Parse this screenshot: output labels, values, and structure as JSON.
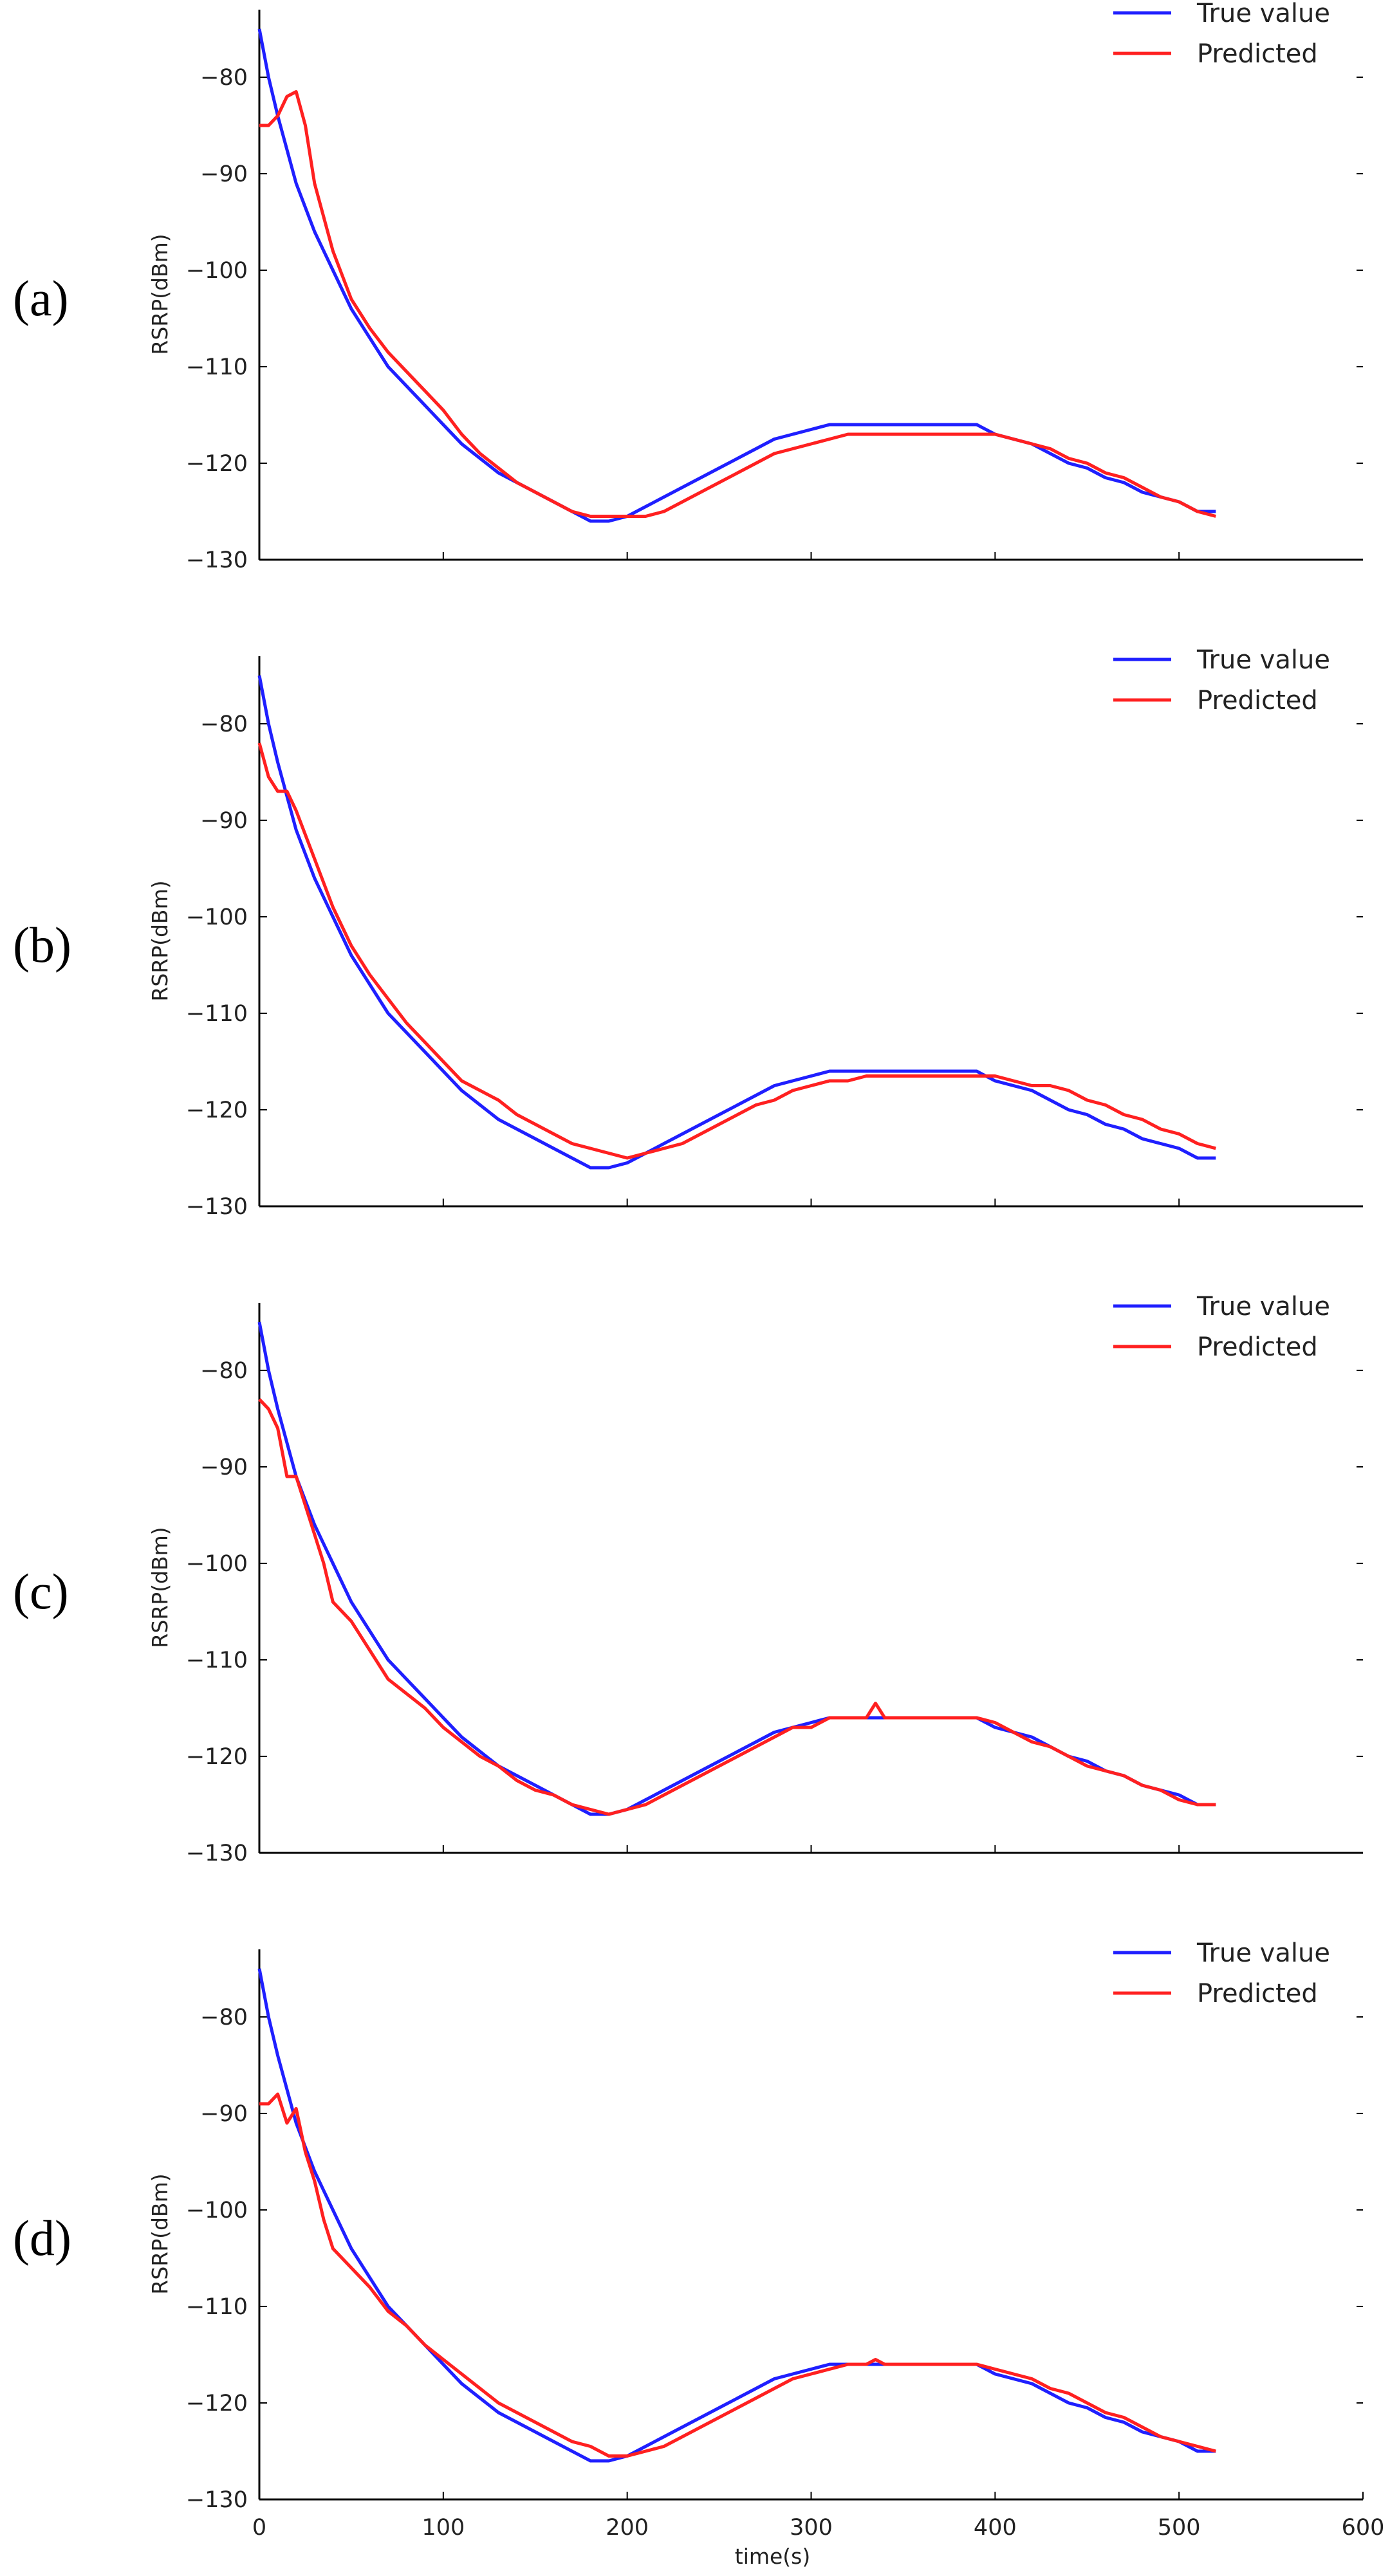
{
  "chart_data": [
    {
      "type": "line",
      "panel_label": "(a)",
      "ylabel": "RSRP(dBm)",
      "xlabel": "",
      "xlim": [
        0,
        600
      ],
      "ylim": [
        -130,
        -75
      ],
      "yticks": [
        -80,
        -90,
        -100,
        -110,
        -120,
        -130
      ],
      "ytick_labels": [
        "−80",
        "−90",
        "−100",
        "−110",
        "−120",
        "−130"
      ],
      "xticks": [
        100,
        200,
        300,
        400,
        500
      ],
      "xtick_labels": [],
      "legend_position": "top-right",
      "series": [
        {
          "name": "True value",
          "color": "#1f1fff",
          "x": [
            0,
            5,
            10,
            20,
            30,
            40,
            50,
            60,
            70,
            80,
            90,
            100,
            110,
            120,
            130,
            140,
            150,
            160,
            170,
            180,
            190,
            200,
            210,
            220,
            230,
            240,
            250,
            260,
            270,
            280,
            290,
            300,
            310,
            320,
            330,
            340,
            350,
            360,
            370,
            380,
            390,
            400,
            410,
            420,
            430,
            440,
            450,
            460,
            470,
            480,
            490,
            500,
            510,
            520
          ],
          "y": [
            -75,
            -80,
            -84,
            -91,
            -96,
            -100,
            -104,
            -107,
            -110,
            -112,
            -114,
            -116,
            -118,
            -119.5,
            -121,
            -122,
            -123,
            -124,
            -125,
            -126,
            -126,
            -125.5,
            -124.5,
            -123.5,
            -122.5,
            -121.5,
            -120.5,
            -119.5,
            -118.5,
            -117.5,
            -117,
            -116.5,
            -116,
            -116,
            -116,
            -116,
            -116,
            -116,
            -116,
            -116,
            -116,
            -117,
            -117.5,
            -118,
            -119,
            -120,
            -120.5,
            -121.5,
            -122,
            -123,
            -123.5,
            -124,
            -125,
            -125
          ]
        },
        {
          "name": "Predicted",
          "color": "#ff2020",
          "x": [
            0,
            5,
            10,
            15,
            20,
            25,
            30,
            40,
            50,
            60,
            70,
            80,
            90,
            100,
            110,
            120,
            130,
            140,
            150,
            160,
            170,
            180,
            190,
            200,
            210,
            220,
            230,
            240,
            250,
            260,
            270,
            280,
            290,
            300,
            310,
            320,
            330,
            340,
            350,
            360,
            370,
            380,
            390,
            400,
            410,
            420,
            430,
            440,
            450,
            460,
            470,
            480,
            490,
            500,
            510,
            520
          ],
          "y": [
            -85,
            -85,
            -84,
            -82,
            -81.5,
            -85,
            -91,
            -98,
            -103,
            -106,
            -108.5,
            -110.5,
            -112.5,
            -114.5,
            -117,
            -119,
            -120.5,
            -122,
            -123,
            -124,
            -125,
            -125.5,
            -125.5,
            -125.5,
            -125.5,
            -125,
            -124,
            -123,
            -122,
            -121,
            -120,
            -119,
            -118.5,
            -118,
            -117.5,
            -117,
            -117,
            -117,
            -117,
            -117,
            -117,
            -117,
            -117,
            -117,
            -117.5,
            -118,
            -118.5,
            -119.5,
            -120,
            -121,
            -121.5,
            -122.5,
            -123.5,
            -124,
            -125,
            -125.5
          ]
        }
      ]
    },
    {
      "type": "line",
      "panel_label": "(b)",
      "ylabel": "RSRP(dBm)",
      "xlabel": "",
      "xlim": [
        0,
        600
      ],
      "ylim": [
        -130,
        -75
      ],
      "yticks": [
        -80,
        -90,
        -100,
        -110,
        -120,
        -130
      ],
      "ytick_labels": [
        "−80",
        "−90",
        "−100",
        "−110",
        "−120",
        "−130"
      ],
      "xticks": [
        100,
        200,
        300,
        400,
        500
      ],
      "xtick_labels": [],
      "legend_position": "top-right",
      "series": [
        {
          "name": "True value",
          "color": "#1f1fff",
          "x": [
            0,
            5,
            10,
            20,
            30,
            40,
            50,
            60,
            70,
            80,
            90,
            100,
            110,
            120,
            130,
            140,
            150,
            160,
            170,
            180,
            190,
            200,
            210,
            220,
            230,
            240,
            250,
            260,
            270,
            280,
            290,
            300,
            310,
            320,
            330,
            340,
            350,
            360,
            370,
            380,
            390,
            400,
            410,
            420,
            430,
            440,
            450,
            460,
            470,
            480,
            490,
            500,
            510,
            520
          ],
          "y": [
            -75,
            -80,
            -84,
            -91,
            -96,
            -100,
            -104,
            -107,
            -110,
            -112,
            -114,
            -116,
            -118,
            -119.5,
            -121,
            -122,
            -123,
            -124,
            -125,
            -126,
            -126,
            -125.5,
            -124.5,
            -123.5,
            -122.5,
            -121.5,
            -120.5,
            -119.5,
            -118.5,
            -117.5,
            -117,
            -116.5,
            -116,
            -116,
            -116,
            -116,
            -116,
            -116,
            -116,
            -116,
            -116,
            -117,
            -117.5,
            -118,
            -119,
            -120,
            -120.5,
            -121.5,
            -122,
            -123,
            -123.5,
            -124,
            -125,
            -125
          ]
        },
        {
          "name": "Predicted",
          "color": "#ff2020",
          "x": [
            0,
            5,
            10,
            15,
            20,
            30,
            40,
            50,
            60,
            70,
            80,
            90,
            100,
            110,
            120,
            130,
            140,
            150,
            160,
            170,
            180,
            190,
            200,
            210,
            220,
            230,
            240,
            250,
            260,
            270,
            280,
            290,
            300,
            310,
            320,
            330,
            340,
            350,
            360,
            370,
            380,
            390,
            400,
            410,
            420,
            430,
            440,
            450,
            460,
            470,
            480,
            490,
            500,
            510,
            520
          ],
          "y": [
            -82,
            -85.5,
            -87,
            -87,
            -89,
            -94,
            -99,
            -103,
            -106,
            -108.5,
            -111,
            -113,
            -115,
            -117,
            -118,
            -119,
            -120.5,
            -121.5,
            -122.5,
            -123.5,
            -124,
            -124.5,
            -125,
            -124.5,
            -124,
            -123.5,
            -122.5,
            -121.5,
            -120.5,
            -119.5,
            -119,
            -118,
            -117.5,
            -117,
            -117,
            -116.5,
            -116.5,
            -116.5,
            -116.5,
            -116.5,
            -116.5,
            -116.5,
            -116.5,
            -117,
            -117.5,
            -117.5,
            -118,
            -119,
            -119.5,
            -120.5,
            -121,
            -122,
            -122.5,
            -123.5,
            -124
          ]
        }
      ]
    },
    {
      "type": "line",
      "panel_label": "(c)",
      "ylabel": "RSRP(dBm)",
      "xlabel": "",
      "xlim": [
        0,
        600
      ],
      "ylim": [
        -130,
        -75
      ],
      "yticks": [
        -80,
        -90,
        -100,
        -110,
        -120,
        -130
      ],
      "ytick_labels": [
        "−80",
        "−90",
        "−100",
        "−110",
        "−120",
        "−130"
      ],
      "xticks": [
        100,
        200,
        300,
        400,
        500
      ],
      "xtick_labels": [],
      "legend_position": "top-right",
      "series": [
        {
          "name": "True value",
          "color": "#1f1fff",
          "x": [
            0,
            5,
            10,
            20,
            30,
            40,
            50,
            60,
            70,
            80,
            90,
            100,
            110,
            120,
            130,
            140,
            150,
            160,
            170,
            180,
            190,
            200,
            210,
            220,
            230,
            240,
            250,
            260,
            270,
            280,
            290,
            300,
            310,
            320,
            330,
            340,
            350,
            360,
            370,
            380,
            390,
            400,
            410,
            420,
            430,
            440,
            450,
            460,
            470,
            480,
            490,
            500,
            510,
            520
          ],
          "y": [
            -75,
            -80,
            -84,
            -91,
            -96,
            -100,
            -104,
            -107,
            -110,
            -112,
            -114,
            -116,
            -118,
            -119.5,
            -121,
            -122,
            -123,
            -124,
            -125,
            -126,
            -126,
            -125.5,
            -124.5,
            -123.5,
            -122.5,
            -121.5,
            -120.5,
            -119.5,
            -118.5,
            -117.5,
            -117,
            -116.5,
            -116,
            -116,
            -116,
            -116,
            -116,
            -116,
            -116,
            -116,
            -116,
            -117,
            -117.5,
            -118,
            -119,
            -120,
            -120.5,
            -121.5,
            -122,
            -123,
            -123.5,
            -124,
            -125,
            -125
          ]
        },
        {
          "name": "Predicted",
          "color": "#ff2020",
          "x": [
            0,
            5,
            10,
            15,
            20,
            25,
            30,
            35,
            40,
            50,
            60,
            70,
            80,
            90,
            100,
            110,
            120,
            130,
            140,
            150,
            160,
            170,
            180,
            190,
            200,
            210,
            220,
            230,
            240,
            250,
            260,
            270,
            280,
            290,
            300,
            310,
            320,
            330,
            335,
            340,
            350,
            360,
            370,
            380,
            390,
            400,
            410,
            420,
            430,
            440,
            450,
            460,
            470,
            480,
            490,
            500,
            510,
            520
          ],
          "y": [
            -83,
            -84,
            -86,
            -91,
            -91,
            -94,
            -97,
            -100,
            -104,
            -106,
            -109,
            -112,
            -113.5,
            -115,
            -117,
            -118.5,
            -120,
            -121,
            -122.5,
            -123.5,
            -124,
            -125,
            -125.5,
            -126,
            -125.5,
            -125,
            -124,
            -123,
            -122,
            -121,
            -120,
            -119,
            -118,
            -117,
            -117,
            -116,
            -116,
            -116,
            -114.5,
            -116,
            -116,
            -116,
            -116,
            -116,
            -116,
            -116.5,
            -117.5,
            -118.5,
            -119,
            -120,
            -121,
            -121.5,
            -122,
            -123,
            -123.5,
            -124.5,
            -125,
            -125
          ]
        }
      ]
    },
    {
      "type": "line",
      "panel_label": "(d)",
      "ylabel": "RSRP(dBm)",
      "xlabel": "time(s)",
      "xlim": [
        0,
        600
      ],
      "ylim": [
        -130,
        -75
      ],
      "yticks": [
        -80,
        -90,
        -100,
        -110,
        -120,
        -130
      ],
      "ytick_labels": [
        "−80",
        "−90",
        "−100",
        "−110",
        "−120",
        "−130"
      ],
      "xticks": [
        0,
        100,
        200,
        300,
        400,
        500,
        600
      ],
      "xtick_labels": [
        "0",
        "100",
        "200",
        "300",
        "400",
        "500",
        "600"
      ],
      "legend_position": "top-right",
      "series": [
        {
          "name": "True value",
          "color": "#1f1fff",
          "x": [
            0,
            5,
            10,
            20,
            30,
            40,
            50,
            60,
            70,
            80,
            90,
            100,
            110,
            120,
            130,
            140,
            150,
            160,
            170,
            180,
            190,
            200,
            210,
            220,
            230,
            240,
            250,
            260,
            270,
            280,
            290,
            300,
            310,
            320,
            330,
            340,
            350,
            360,
            370,
            380,
            390,
            400,
            410,
            420,
            430,
            440,
            450,
            460,
            470,
            480,
            490,
            500,
            510,
            520
          ],
          "y": [
            -75,
            -80,
            -84,
            -91,
            -96,
            -100,
            -104,
            -107,
            -110,
            -112,
            -114,
            -116,
            -118,
            -119.5,
            -121,
            -122,
            -123,
            -124,
            -125,
            -126,
            -126,
            -125.5,
            -124.5,
            -123.5,
            -122.5,
            -121.5,
            -120.5,
            -119.5,
            -118.5,
            -117.5,
            -117,
            -116.5,
            -116,
            -116,
            -116,
            -116,
            -116,
            -116,
            -116,
            -116,
            -116,
            -117,
            -117.5,
            -118,
            -119,
            -120,
            -120.5,
            -121.5,
            -122,
            -123,
            -123.5,
            -124,
            -125,
            -125
          ]
        },
        {
          "name": "Predicted",
          "color": "#ff2020",
          "x": [
            0,
            5,
            10,
            15,
            20,
            25,
            30,
            35,
            40,
            50,
            60,
            70,
            80,
            90,
            100,
            110,
            120,
            130,
            140,
            150,
            160,
            170,
            180,
            190,
            200,
            210,
            220,
            230,
            240,
            250,
            260,
            270,
            280,
            290,
            300,
            310,
            320,
            330,
            335,
            340,
            350,
            360,
            370,
            380,
            390,
            400,
            410,
            420,
            430,
            440,
            450,
            460,
            470,
            480,
            490,
            500,
            510,
            520
          ],
          "y": [
            -89,
            -89,
            -88,
            -91,
            -89.5,
            -94,
            -97,
            -101,
            -104,
            -106,
            -108,
            -110.5,
            -112,
            -114,
            -115.5,
            -117,
            -118.5,
            -120,
            -121,
            -122,
            -123,
            -124,
            -124.5,
            -125.5,
            -125.5,
            -125,
            -124.5,
            -123.5,
            -122.5,
            -121.5,
            -120.5,
            -119.5,
            -118.5,
            -117.5,
            -117,
            -116.5,
            -116,
            -116,
            -115.5,
            -116,
            -116,
            -116,
            -116,
            -116,
            -116,
            -116.5,
            -117,
            -117.5,
            -118.5,
            -119,
            -120,
            -121,
            -121.5,
            -122.5,
            -123.5,
            -124,
            -124.5,
            -125
          ]
        }
      ]
    }
  ]
}
